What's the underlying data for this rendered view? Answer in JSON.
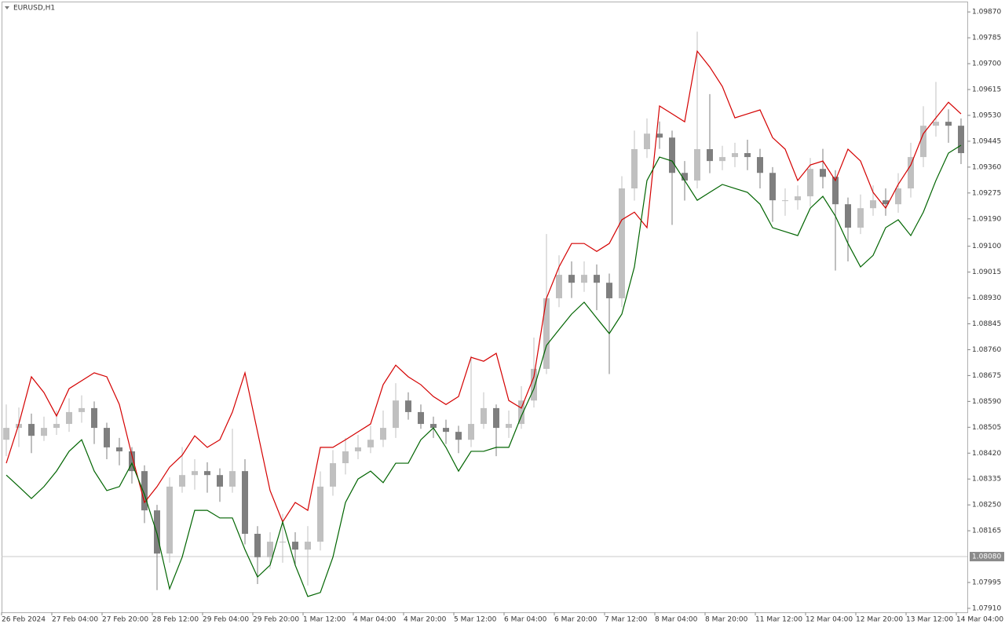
{
  "chart_data": {
    "type": "candlestick",
    "title": "EURUSD,H1",
    "categories": [
      "26 Feb 2024",
      null,
      null,
      null,
      "27 Feb 04:00",
      null,
      null,
      null,
      "27 Feb 20:00",
      null,
      null,
      null,
      "28 Feb 12:00",
      null,
      null,
      null,
      "29 Feb 04:00",
      null,
      null,
      null,
      "29 Feb 20:00",
      null,
      null,
      null,
      "1 Mar 12:00",
      null,
      null,
      null,
      "4 Mar 04:00",
      null,
      null,
      null,
      "4 Mar 20:00",
      null,
      null,
      null,
      "5 Mar 12:00",
      null,
      null,
      null,
      "6 Mar 04:00",
      null,
      null,
      null,
      "6 Mar 20:00",
      null,
      null,
      null,
      "7 Mar 12:00",
      null,
      null,
      null,
      "8 Mar 04:00",
      null,
      null,
      null,
      "8 Mar 20:00",
      null,
      null,
      null,
      "11 Mar 12:00",
      null,
      null,
      null,
      "12 Mar 04:00",
      null,
      null,
      null,
      "12 Mar 20:00",
      null,
      null,
      null,
      "13 Mar 12:00",
      null,
      null,
      null,
      "14 Mar 04:00"
    ],
    "open": [
      1.08464,
      1.08503,
      1.08516,
      1.08477,
      1.08503,
      1.08516,
      1.08555,
      1.08568,
      1.08503,
      1.08439,
      1.08426,
      1.08361,
      1.08232,
      1.0809,
      1.0831,
      1.08348,
      1.08361,
      1.08348,
      1.0831,
      1.08361,
      1.08155,
      1.08078,
      1.08129,
      1.08129,
      1.08103,
      1.08129,
      1.0831,
      1.08387,
      1.08426,
      1.08439,
      1.08464,
      1.08503,
      1.08593,
      1.08555,
      1.08516,
      1.08503,
      1.0849,
      1.08464,
      1.08516,
      1.08568,
      1.08503,
      1.08516,
      1.08593,
      1.08697,
      1.08929,
      1.09006,
      1.0898,
      1.09006,
      1.0898,
      1.08929,
      1.0929,
      1.09419,
      1.0947,
      1.09457,
      1.09341,
      1.09316,
      1.09419,
      1.0938,
      1.09393,
      1.09406,
      1.09393,
      1.09341,
      1.09251,
      1.09251,
      1.09264,
      1.09354,
      1.09328,
      1.09238,
      1.09161,
      1.09225,
      1.09251,
      1.09238,
      1.0929,
      1.09393,
      1.09496,
      1.09509,
      1.09496
    ],
    "high": [
      1.0858,
      1.0857,
      1.0855,
      1.0854,
      1.0856,
      1.086,
      1.0861,
      1.0859,
      1.0852,
      1.0847,
      1.0844,
      1.0838,
      1.0825,
      1.0834,
      1.0844,
      1.084,
      1.0839,
      1.0837,
      1.085,
      1.084,
      1.0818,
      1.0816,
      1.0822,
      1.0816,
      1.0818,
      1.0836,
      1.0843,
      1.0847,
      1.0848,
      1.0851,
      1.0856,
      1.0865,
      1.0862,
      1.0858,
      1.0854,
      1.0853,
      1.0851,
      1.0874,
      1.0862,
      1.0858,
      1.0856,
      1.0864,
      1.088,
      1.0914,
      1.0907,
      1.0905,
      1.0905,
      1.0904,
      1.0901,
      1.0933,
      1.0948,
      1.0952,
      1.0951,
      1.0948,
      1.0938,
      1.09805,
      1.096,
      1.0943,
      1.0944,
      1.0945,
      1.0942,
      1.0936,
      1.0929,
      1.093,
      1.0939,
      1.0942,
      1.0935,
      1.0926,
      1.0927,
      1.093,
      1.0929,
      1.0934,
      1.0944,
      1.0956,
      1.0964,
      1.0955,
      1.0952
    ],
    "low": [
      1.0841,
      1.0844,
      1.0842,
      1.0846,
      1.0848,
      1.0849,
      1.0852,
      1.0845,
      1.084,
      1.0838,
      1.0832,
      1.0819,
      1.0797,
      1.0806,
      1.0829,
      1.083,
      1.0829,
      1.0826,
      1.0829,
      1.0812,
      1.0799,
      1.0804,
      1.0806,
      1.0805,
      1.07985,
      1.081,
      1.0828,
      1.0835,
      1.084,
      1.0842,
      1.0844,
      1.0847,
      1.0853,
      1.085,
      1.0847,
      1.0845,
      1.0842,
      1.0844,
      1.085,
      1.0841,
      1.0847,
      1.085,
      1.0857,
      1.0868,
      1.089,
      1.0893,
      1.0895,
      1.0889,
      1.0868,
      1.089,
      1.0925,
      1.0939,
      1.0942,
      1.0917,
      1.0925,
      1.0929,
      1.0934,
      1.0935,
      1.0936,
      1.0935,
      1.0929,
      1.0918,
      1.092,
      1.0922,
      1.0923,
      1.0929,
      1.0902,
      1.0905,
      1.0914,
      1.092,
      1.092,
      1.0921,
      1.0926,
      1.0936,
      1.0946,
      1.0944,
      1.0937
    ],
    "close": [
      1.08503,
      1.08516,
      1.08477,
      1.08503,
      1.08516,
      1.08555,
      1.08568,
      1.08503,
      1.08439,
      1.08426,
      1.08361,
      1.08232,
      1.0809,
      1.0831,
      1.08348,
      1.08361,
      1.08348,
      1.0831,
      1.08361,
      1.08155,
      1.08078,
      1.08129,
      1.08129,
      1.08103,
      1.08129,
      1.0831,
      1.08387,
      1.08426,
      1.08439,
      1.08464,
      1.08503,
      1.08593,
      1.08555,
      1.08516,
      1.08503,
      1.0849,
      1.08464,
      1.08516,
      1.08568,
      1.08503,
      1.08516,
      1.08593,
      1.08697,
      1.08929,
      1.09006,
      1.0898,
      1.09006,
      1.0898,
      1.08929,
      1.0929,
      1.09419,
      1.0947,
      1.09457,
      1.09341,
      1.09316,
      1.09419,
      1.0938,
      1.09393,
      1.09406,
      1.09393,
      1.09341,
      1.09251,
      1.09251,
      1.09264,
      1.09354,
      1.09328,
      1.09238,
      1.09161,
      1.09225,
      1.09251,
      1.09238,
      1.0929,
      1.09393,
      1.09496,
      1.09509,
      1.09496,
      1.09406
    ],
    "up_color": "#c0c0c0",
    "down_color": "#7f7f7f",
    "lines": [
      {
        "color": "#d40000",
        "values": [
          1.08387,
          1.08516,
          1.08671,
          1.08619,
          1.08542,
          1.08632,
          1.08658,
          1.08684,
          1.08671,
          1.0858,
          1.08413,
          1.08258,
          1.0831,
          1.08374,
          1.08413,
          1.08477,
          1.08439,
          1.08464,
          1.08555,
          1.08684,
          1.0849,
          1.08297,
          1.08194,
          1.08258,
          1.08232,
          1.08439,
          1.08439,
          1.08464,
          1.0849,
          1.08516,
          1.08645,
          1.08709,
          1.08671,
          1.08645,
          1.08606,
          1.0858,
          1.08606,
          1.08735,
          1.08722,
          1.08748,
          1.08593,
          1.08568,
          1.08671,
          1.08929,
          1.09032,
          1.09109,
          1.09109,
          1.09083,
          1.09109,
          1.09187,
          1.09212,
          1.09161,
          1.09561,
          1.09535,
          1.09509,
          1.09741,
          1.09689,
          1.09625,
          1.09522,
          1.09535,
          1.09548,
          1.09457,
          1.09419,
          1.09316,
          1.09367,
          1.0938,
          1.09316,
          1.09419,
          1.0938,
          1.09277,
          1.09225,
          1.09303,
          1.09367,
          1.0947,
          1.09522,
          1.09573,
          1.09535
        ]
      },
      {
        "color": "#006400",
        "values": [
          1.08348,
          1.0831,
          1.08271,
          1.0831,
          1.08361,
          1.08426,
          1.08464,
          1.08361,
          1.08297,
          1.0831,
          1.08387,
          1.08284,
          1.08155,
          1.07974,
          1.08078,
          1.08232,
          1.08232,
          1.08207,
          1.08207,
          1.08103,
          1.08013,
          1.08052,
          1.08194,
          1.08052,
          1.07949,
          1.07962,
          1.08078,
          1.08258,
          1.08335,
          1.08361,
          1.08323,
          1.08387,
          1.08387,
          1.08464,
          1.08503,
          1.08439,
          1.08361,
          1.08426,
          1.08426,
          1.08439,
          1.08439,
          1.08542,
          1.08632,
          1.08774,
          1.08826,
          1.08877,
          1.08916,
          1.08864,
          1.08813,
          1.08877,
          1.09032,
          1.09316,
          1.09393,
          1.0938,
          1.09316,
          1.09251,
          1.09277,
          1.09303,
          1.0929,
          1.09277,
          1.09238,
          1.09161,
          1.09148,
          1.09135,
          1.09225,
          1.09264,
          1.09199,
          1.09109,
          1.09032,
          1.0907,
          1.09161,
          1.09187,
          1.09135,
          1.09212,
          1.09316,
          1.09406,
          1.09432
        ]
      }
    ],
    "price_line": {
      "value": 1.0808,
      "label": "1.08080"
    },
    "ylim": [
      1.07897,
      1.09904
    ],
    "yticks": [
      {
        "value": 1.0987,
        "label": "1.09870"
      },
      {
        "value": 1.09785,
        "label": "1.09785"
      },
      {
        "value": 1.097,
        "label": "1.09700"
      },
      {
        "value": 1.09615,
        "label": "1.09615"
      },
      {
        "value": 1.0953,
        "label": "1.09530"
      },
      {
        "value": 1.09445,
        "label": "1.09445"
      },
      {
        "value": 1.0936,
        "label": "1.09360"
      },
      {
        "value": 1.09275,
        "label": "1.09275"
      },
      {
        "value": 1.0919,
        "label": "1.09190"
      },
      {
        "value": 1.091,
        "label": "1.09100"
      },
      {
        "value": 1.09015,
        "label": "1.09015"
      },
      {
        "value": 1.0893,
        "label": "1.08930"
      },
      {
        "value": 1.08845,
        "label": "1.08845"
      },
      {
        "value": 1.0876,
        "label": "1.08760"
      },
      {
        "value": 1.08675,
        "label": "1.08675"
      },
      {
        "value": 1.0859,
        "label": "1.08590"
      },
      {
        "value": 1.08505,
        "label": "1.08505"
      },
      {
        "value": 1.0842,
        "label": "1.08420"
      },
      {
        "value": 1.08335,
        "label": "1.08335"
      },
      {
        "value": 1.0825,
        "label": "1.08250"
      },
      {
        "value": 1.08165,
        "label": "1.08165"
      },
      {
        "value": 1.07995,
        "label": "1.07995"
      },
      {
        "value": 1.0791,
        "label": "1.07910"
      }
    ]
  }
}
